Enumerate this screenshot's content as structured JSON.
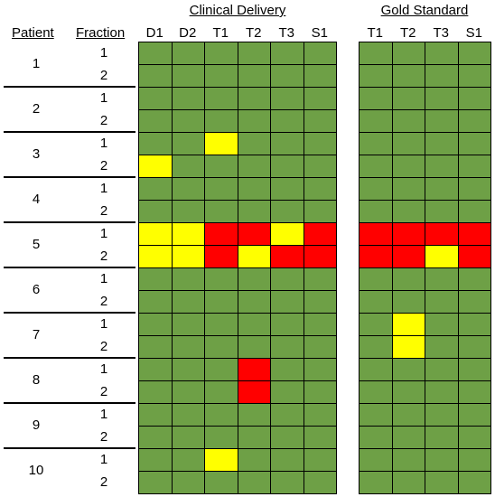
{
  "headers": {
    "patient": "Patient",
    "fraction": "Fraction",
    "clinical_delivery": "Clinical Delivery",
    "gold_standard": "Gold Standard"
  },
  "clinical_columns": [
    "D1",
    "D2",
    "T1",
    "T2",
    "T3",
    "S1"
  ],
  "gold_columns": [
    "T1",
    "T2",
    "T3",
    "S1"
  ],
  "colors": {
    "green": "#6ea046",
    "yellow": "#ffff00",
    "red": "#ff0000"
  },
  "patients": [
    {
      "id": "1",
      "fractions": [
        {
          "label": "1",
          "clinical": [
            "G",
            "G",
            "G",
            "G",
            "G",
            "G"
          ],
          "gold": [
            "G",
            "G",
            "G",
            "G"
          ]
        },
        {
          "label": "2",
          "clinical": [
            "G",
            "G",
            "G",
            "G",
            "G",
            "G"
          ],
          "gold": [
            "G",
            "G",
            "G",
            "G"
          ]
        }
      ]
    },
    {
      "id": "2",
      "fractions": [
        {
          "label": "1",
          "clinical": [
            "G",
            "G",
            "G",
            "G",
            "G",
            "G"
          ],
          "gold": [
            "G",
            "G",
            "G",
            "G"
          ]
        },
        {
          "label": "2",
          "clinical": [
            "G",
            "G",
            "G",
            "G",
            "G",
            "G"
          ],
          "gold": [
            "G",
            "G",
            "G",
            "G"
          ]
        }
      ]
    },
    {
      "id": "3",
      "fractions": [
        {
          "label": "1",
          "clinical": [
            "G",
            "G",
            "Y",
            "G",
            "G",
            "G"
          ],
          "gold": [
            "G",
            "G",
            "G",
            "G"
          ]
        },
        {
          "label": "2",
          "clinical": [
            "Y",
            "G",
            "G",
            "G",
            "G",
            "G"
          ],
          "gold": [
            "G",
            "G",
            "G",
            "G"
          ]
        }
      ]
    },
    {
      "id": "4",
      "fractions": [
        {
          "label": "1",
          "clinical": [
            "G",
            "G",
            "G",
            "G",
            "G",
            "G"
          ],
          "gold": [
            "G",
            "G",
            "G",
            "G"
          ]
        },
        {
          "label": "2",
          "clinical": [
            "G",
            "G",
            "G",
            "G",
            "G",
            "G"
          ],
          "gold": [
            "G",
            "G",
            "G",
            "G"
          ]
        }
      ]
    },
    {
      "id": "5",
      "fractions": [
        {
          "label": "1",
          "clinical": [
            "Y",
            "Y",
            "R",
            "R",
            "Y",
            "R"
          ],
          "gold": [
            "R",
            "R",
            "R",
            "R"
          ]
        },
        {
          "label": "2",
          "clinical": [
            "Y",
            "Y",
            "R",
            "Y",
            "R",
            "R"
          ],
          "gold": [
            "R",
            "R",
            "Y",
            "R"
          ]
        }
      ]
    },
    {
      "id": "6",
      "fractions": [
        {
          "label": "1",
          "clinical": [
            "G",
            "G",
            "G",
            "G",
            "G",
            "G"
          ],
          "gold": [
            "G",
            "G",
            "G",
            "G"
          ]
        },
        {
          "label": "2",
          "clinical": [
            "G",
            "G",
            "G",
            "G",
            "G",
            "G"
          ],
          "gold": [
            "G",
            "G",
            "G",
            "G"
          ]
        }
      ]
    },
    {
      "id": "7",
      "fractions": [
        {
          "label": "1",
          "clinical": [
            "G",
            "G",
            "G",
            "G",
            "G",
            "G"
          ],
          "gold": [
            "G",
            "Y",
            "G",
            "G"
          ]
        },
        {
          "label": "2",
          "clinical": [
            "G",
            "G",
            "G",
            "G",
            "G",
            "G"
          ],
          "gold": [
            "G",
            "Y",
            "G",
            "G"
          ]
        }
      ]
    },
    {
      "id": "8",
      "fractions": [
        {
          "label": "1",
          "clinical": [
            "G",
            "G",
            "G",
            "R",
            "G",
            "G"
          ],
          "gold": [
            "G",
            "G",
            "G",
            "G"
          ]
        },
        {
          "label": "2",
          "clinical": [
            "G",
            "G",
            "G",
            "R",
            "G",
            "G"
          ],
          "gold": [
            "G",
            "G",
            "G",
            "G"
          ]
        }
      ]
    },
    {
      "id": "9",
      "fractions": [
        {
          "label": "1",
          "clinical": [
            "G",
            "G",
            "G",
            "G",
            "G",
            "G"
          ],
          "gold": [
            "G",
            "G",
            "G",
            "G"
          ]
        },
        {
          "label": "2",
          "clinical": [
            "G",
            "G",
            "G",
            "G",
            "G",
            "G"
          ],
          "gold": [
            "G",
            "G",
            "G",
            "G"
          ]
        }
      ]
    },
    {
      "id": "10",
      "fractions": [
        {
          "label": "1",
          "clinical": [
            "G",
            "G",
            "Y",
            "G",
            "G",
            "G"
          ],
          "gold": [
            "G",
            "G",
            "G",
            "G"
          ]
        },
        {
          "label": "2",
          "clinical": [
            "G",
            "G",
            "G",
            "G",
            "G",
            "G"
          ],
          "gold": [
            "G",
            "G",
            "G",
            "G"
          ]
        }
      ]
    }
  ]
}
